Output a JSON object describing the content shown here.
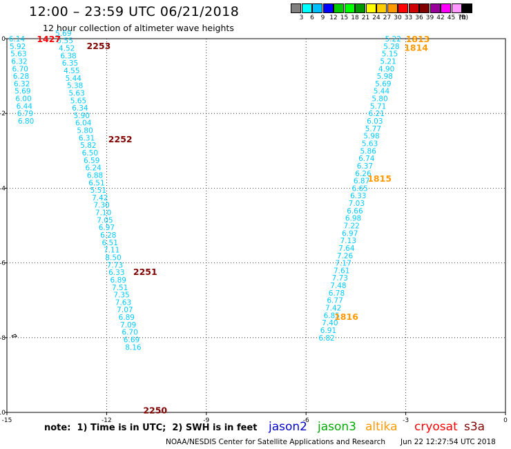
{
  "header": {
    "title": "12:00 – 23:59 UTC 06/21/2018",
    "subtitle": "12 hour collection of altimeter wave heights"
  },
  "legend": {
    "colors": [
      "#808080",
      "#00ffff",
      "#00bfff",
      "#0000ff",
      "#00cc00",
      "#00ff00",
      "#009900",
      "#ffff00",
      "#ffcc00",
      "#ff9900",
      "#ff0000",
      "#cc0000",
      "#800000",
      "#990099",
      "#ff00ff",
      "#ff99ff",
      "#000000"
    ],
    "labels": [
      "3",
      "6",
      "9",
      "12",
      "15",
      "18",
      "21",
      "24",
      "27",
      "30",
      "33",
      "36",
      "39",
      "42",
      "45",
      "70"
    ],
    "unit": "(ft)"
  },
  "axes": {
    "x_ticks": [
      "-15",
      "-12",
      "-9",
      "-6",
      "-3",
      "0"
    ],
    "y_ticks": [
      "0",
      "-2",
      "-4",
      "-6",
      "-8",
      "-10"
    ]
  },
  "tracks": [
    {
      "color": "#00ccff",
      "lon_start": -14.7,
      "lat_start": 0.0,
      "lon_step": 0.025,
      "lat_step": 0.2,
      "values": [
        "6.14",
        "5.92",
        "5.63",
        "6.32",
        "6.70",
        "6.28",
        "6.32",
        "5.69",
        "6.00",
        "6.44",
        "6.79",
        "6.80"
      ]
    },
    {
      "color": "#00ccff",
      "lon_start": -13.3,
      "lat_start": 0.15,
      "lon_step": 0.05,
      "lat_step": 0.2,
      "values": [
        "5.69",
        "5.55",
        "4.52",
        "6.38",
        "6.35",
        "4.55",
        "5.44",
        "5.38",
        "5.63",
        "5.65",
        "6.34",
        "5.90",
        "6.04",
        "5.80",
        "6.31",
        "5.82",
        "6.50",
        "6.59",
        "6.24",
        "6.88",
        "6.51",
        "5.51",
        "7.42",
        "7.30",
        "7.10",
        "7.05",
        "6.97",
        "6.28",
        "6.51",
        "7.11",
        "8.50",
        "7.73",
        "6.33",
        "6.89",
        "7.51",
        "7.35",
        "7.63",
        "7.07",
        "6.89",
        "7.09",
        "6.70",
        "6.69",
        "8.16"
      ]
    },
    {
      "color": "#00ccff",
      "lon_start": -3.38,
      "lat_start": 0.0,
      "lon_step": -0.05,
      "lat_step": 0.2,
      "values": [
        "5.22",
        "5.28",
        "5.15",
        "5.21",
        "4.90",
        "5.98",
        "5.69",
        "5.44",
        "5.80",
        "5.71",
        "6.21",
        "6.03",
        "5.77",
        "5.98",
        "5.63",
        "5.86",
        "6.74",
        "6.37",
        "6.26",
        "6.87",
        "6.65",
        "6.33",
        "7.03",
        "6.66",
        "6.98",
        "7.22",
        "6.97",
        "7.13",
        "7.64",
        "7.26",
        "7.17",
        "7.61",
        "7.73",
        "7.48",
        "6.78",
        "6.77",
        "7.42",
        "6.85",
        "7.40",
        "6.91",
        "6.82"
      ]
    }
  ],
  "time_labels": [
    {
      "text": "1427",
      "color": "#ff0000",
      "lon": -14.1,
      "lat": -0.02
    },
    {
      "text": "2253",
      "color": "#800000",
      "lon": -12.6,
      "lat": -0.2
    },
    {
      "text": "2252",
      "color": "#800000",
      "lon": -11.95,
      "lat": -2.7
    },
    {
      "text": "2251",
      "color": "#800000",
      "lon": -11.2,
      "lat": -6.25
    },
    {
      "text": "2250",
      "color": "#800000",
      "lon": -10.9,
      "lat": -9.95
    },
    {
      "text": "1813",
      "color": "#ff9900",
      "lon": -3.0,
      "lat": -0.02
    },
    {
      "text": "1814",
      "color": "#ff9900",
      "lon": -3.05,
      "lat": -0.25
    },
    {
      "text": "1815",
      "color": "#ff9900",
      "lon": -4.15,
      "lat": -3.75
    },
    {
      "text": "1816",
      "color": "#ff9900",
      "lon": -5.15,
      "lat": -7.45
    }
  ],
  "footer": {
    "note": "note:  1) Time is in UTC;  2) SWH is in feet",
    "satellites": [
      {
        "name": "jason2",
        "color": "#0000cc"
      },
      {
        "name": "jason3",
        "color": "#00aa00"
      },
      {
        "name": "altika",
        "color": "#ff9900"
      },
      {
        "name": "cryosat",
        "color": "#ff0000"
      },
      {
        "name": "s3a",
        "color": "#800000"
      }
    ],
    "credit": "NOAA/NESDIS Center for Satellite Applications and Research",
    "timestamp": "Jun 22 12:27:54 UTC 2018"
  }
}
